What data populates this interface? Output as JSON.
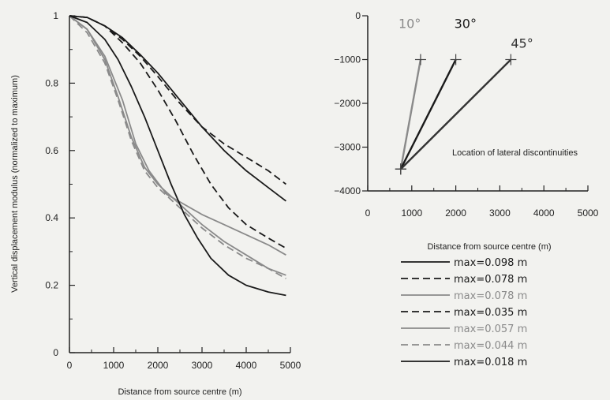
{
  "chart_data": [
    {
      "type": "line",
      "title": "",
      "xlabel": "Distance from source centre (m)",
      "ylabel": "Vertical displacement modulus (normalized to maximum)",
      "xlim": [
        0,
        5000
      ],
      "ylim": [
        0,
        1
      ],
      "x_ticks": [
        "0",
        "1000",
        "2000",
        "3000",
        "4000",
        "5000"
      ],
      "y_ticks": [
        "0",
        "0.2",
        "0.4",
        "0.6",
        "0.8",
        "1"
      ],
      "grid": false,
      "series": [
        {
          "style": "solid",
          "color": "#1a1a1a",
          "x": [
            0,
            400,
            800,
            1200,
            1600,
            2000,
            2500,
            3000,
            3500,
            4000,
            4500,
            4900
          ],
          "y": [
            1.0,
            0.995,
            0.97,
            0.935,
            0.885,
            0.83,
            0.75,
            0.67,
            0.6,
            0.54,
            0.49,
            0.45
          ]
        },
        {
          "style": "dashed",
          "color": "#1a1a1a",
          "x": [
            0,
            400,
            800,
            1200,
            1600,
            2000,
            2500,
            3000,
            3500,
            4000,
            4500,
            4900
          ],
          "y": [
            1.0,
            0.995,
            0.97,
            0.93,
            0.88,
            0.82,
            0.74,
            0.67,
            0.62,
            0.58,
            0.54,
            0.5
          ]
        },
        {
          "style": "solid",
          "color": "#8a8a8a",
          "x": [
            0,
            400,
            800,
            1200,
            1500,
            1800,
            2200,
            2600,
            3000,
            3500,
            4000,
            4500,
            4900
          ],
          "y": [
            1.0,
            0.96,
            0.88,
            0.75,
            0.62,
            0.54,
            0.47,
            0.44,
            0.41,
            0.38,
            0.35,
            0.32,
            0.29
          ]
        },
        {
          "style": "dashed",
          "color": "#1a1a1a",
          "x": [
            0,
            400,
            800,
            1200,
            1600,
            2000,
            2400,
            2800,
            3200,
            3600,
            4000,
            4500,
            4900
          ],
          "y": [
            1.0,
            0.995,
            0.97,
            0.92,
            0.86,
            0.78,
            0.69,
            0.59,
            0.5,
            0.43,
            0.38,
            0.34,
            0.31
          ]
        },
        {
          "style": "solid",
          "color": "#8a8a8a",
          "x": [
            0,
            400,
            800,
            1100,
            1400,
            1700,
            2000,
            2500,
            3000,
            3500,
            4000,
            4500,
            4900
          ],
          "y": [
            1.0,
            0.96,
            0.87,
            0.76,
            0.64,
            0.55,
            0.5,
            0.44,
            0.38,
            0.33,
            0.29,
            0.25,
            0.23
          ]
        },
        {
          "style": "dashed",
          "color": "#8a8a8a",
          "x": [
            0,
            400,
            800,
            1100,
            1400,
            1700,
            2000,
            2500,
            3000,
            3500,
            4000,
            4500,
            4900
          ],
          "y": [
            1.0,
            0.95,
            0.86,
            0.75,
            0.63,
            0.54,
            0.49,
            0.43,
            0.37,
            0.32,
            0.28,
            0.25,
            0.22
          ]
        },
        {
          "style": "solid",
          "color": "#1a1a1a",
          "x": [
            0,
            400,
            800,
            1100,
            1400,
            1700,
            2000,
            2300,
            2600,
            2900,
            3200,
            3600,
            4000,
            4500,
            4900
          ],
          "y": [
            1.0,
            0.98,
            0.93,
            0.87,
            0.79,
            0.7,
            0.6,
            0.5,
            0.41,
            0.34,
            0.28,
            0.23,
            0.2,
            0.18,
            0.17
          ]
        }
      ]
    },
    {
      "type": "line",
      "title": "",
      "xlabel": "Distance from source centre (m)",
      "ylabel": "",
      "xlim": [
        0,
        5000
      ],
      "ylim": [
        -4000,
        0
      ],
      "x_ticks": [
        "0",
        "1000",
        "2000",
        "3000",
        "4000",
        "5000"
      ],
      "y_ticks": [
        "0",
        "−1000",
        "−2000",
        "−3000",
        "−4000"
      ],
      "annotation": "Location of lateral discontinuities",
      "series": [
        {
          "name": "10°",
          "color": "#8a8a8a",
          "x": [
            750,
            1200
          ],
          "y": [
            -3500,
            -1000
          ]
        },
        {
          "name": "30°",
          "color": "#1a1a1a",
          "x": [
            750,
            2000
          ],
          "y": [
            -3500,
            -1000
          ]
        },
        {
          "name": "45°",
          "color": "#333333",
          "x": [
            750,
            3250
          ],
          "y": [
            -3500,
            -1000
          ]
        }
      ]
    }
  ],
  "legend": [
    {
      "label": "max=0.098 m",
      "style": "solid",
      "color": "#1a1a1a"
    },
    {
      "label": "max=0.078 m",
      "style": "dashed",
      "color": "#1a1a1a"
    },
    {
      "label": "max=0.078 m",
      "style": "solid",
      "color": "#8a8a8a"
    },
    {
      "label": "max=0.035 m",
      "style": "dashed",
      "color": "#1a1a1a"
    },
    {
      "label": "max=0.057 m",
      "style": "solid",
      "color": "#8a8a8a"
    },
    {
      "label": "max=0.044 m",
      "style": "dashed",
      "color": "#8a8a8a"
    },
    {
      "label": "max=0.018 m",
      "style": "solid",
      "color": "#1a1a1a"
    }
  ]
}
